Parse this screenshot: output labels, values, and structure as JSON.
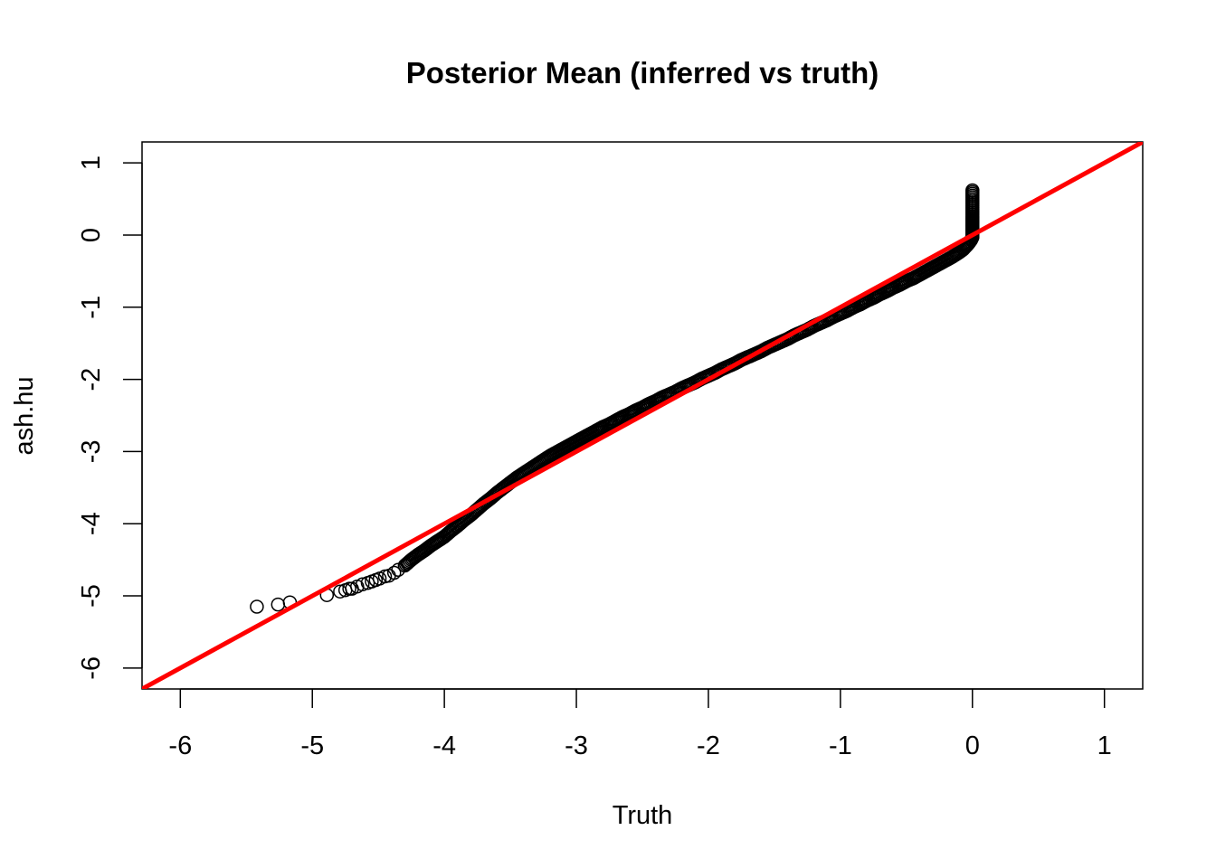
{
  "chart_data": {
    "type": "scatter",
    "title": "Posterior Mean (inferred vs truth)",
    "xlabel": "Truth",
    "ylabel": "ash.hu",
    "xlim": [
      -6.29,
      1.29
    ],
    "ylim": [
      -6.29,
      1.29
    ],
    "x_ticks": [
      -6,
      -5,
      -4,
      -3,
      -2,
      -1,
      0,
      1
    ],
    "x_tick_labels": [
      "-6",
      "-5",
      "-4",
      "-3",
      "-2",
      "-1",
      "0",
      "1"
    ],
    "y_ticks": [
      -6,
      -5,
      -4,
      -3,
      -2,
      -1,
      0,
      1
    ],
    "y_tick_labels": [
      "-6",
      "-5",
      "-4",
      "-3",
      "-2",
      "-1",
      "0",
      "1"
    ],
    "grid": false,
    "legend": "none",
    "point_style": "open-circle",
    "point_color": "#000000",
    "reference_line": {
      "type": "abline",
      "intercept": 0,
      "slope": 1,
      "color": "#ff0000"
    },
    "series": [
      {
        "points": [
          {
            "x": -5.42,
            "y": -5.15
          },
          {
            "x": -5.26,
            "y": -5.12
          },
          {
            "x": -5.17,
            "y": -5.09
          },
          {
            "x": -4.89,
            "y": -4.99
          },
          {
            "x": -4.79,
            "y": -4.94
          },
          {
            "x": -4.75,
            "y": -4.92
          },
          {
            "x": -4.72,
            "y": -4.9
          },
          {
            "x": -4.7,
            "y": -4.9
          },
          {
            "x": -4.66,
            "y": -4.87
          },
          {
            "x": -4.62,
            "y": -4.84
          },
          {
            "x": -4.58,
            "y": -4.82
          },
          {
            "x": -4.55,
            "y": -4.8
          },
          {
            "x": -4.52,
            "y": -4.78
          },
          {
            "x": -4.49,
            "y": -4.76
          },
          {
            "x": -4.45,
            "y": -4.73
          },
          {
            "x": -4.42,
            "y": -4.72
          },
          {
            "x": -4.38,
            "y": -4.68
          },
          {
            "x": -4.35,
            "y": -4.64
          },
          {
            "x": -4.3,
            "y": -4.58
          },
          {
            "x": -4.25,
            "y": -4.5
          },
          {
            "x": -4.2,
            "y": -4.43
          },
          {
            "x": -4.15,
            "y": -4.37
          },
          {
            "x": -4.1,
            "y": -4.3
          },
          {
            "x": -4.05,
            "y": -4.24
          },
          {
            "x": -4.0,
            "y": -4.18
          },
          {
            "x": -3.95,
            "y": -4.1
          },
          {
            "x": -3.9,
            "y": -4.03
          },
          {
            "x": -3.85,
            "y": -3.95
          },
          {
            "x": -3.8,
            "y": -3.88
          },
          {
            "x": -3.75,
            "y": -3.8
          },
          {
            "x": -3.7,
            "y": -3.72
          },
          {
            "x": -3.65,
            "y": -3.65
          },
          {
            "x": -3.6,
            "y": -3.57
          },
          {
            "x": -3.55,
            "y": -3.5
          },
          {
            "x": -3.5,
            "y": -3.43
          },
          {
            "x": -3.45,
            "y": -3.36
          },
          {
            "x": -3.4,
            "y": -3.3
          },
          {
            "x": -3.35,
            "y": -3.24
          },
          {
            "x": -3.3,
            "y": -3.18
          },
          {
            "x": -3.25,
            "y": -3.12
          },
          {
            "x": -3.2,
            "y": -3.06
          },
          {
            "x": -3.15,
            "y": -3.01
          },
          {
            "x": -3.1,
            "y": -2.96
          },
          {
            "x": -3.05,
            "y": -2.91
          },
          {
            "x": -3.0,
            "y": -2.86
          },
          {
            "x": -2.95,
            "y": -2.81
          },
          {
            "x": -2.9,
            "y": -2.76
          },
          {
            "x": -2.85,
            "y": -2.71
          },
          {
            "x": -2.8,
            "y": -2.66
          },
          {
            "x": -2.75,
            "y": -2.62
          },
          {
            "x": -2.7,
            "y": -2.57
          },
          {
            "x": -2.65,
            "y": -2.52
          },
          {
            "x": -2.6,
            "y": -2.48
          },
          {
            "x": -2.55,
            "y": -2.43
          },
          {
            "x": -2.5,
            "y": -2.39
          },
          {
            "x": -2.45,
            "y": -2.34
          },
          {
            "x": -2.4,
            "y": -2.3
          },
          {
            "x": -2.35,
            "y": -2.25
          },
          {
            "x": -2.3,
            "y": -2.21
          },
          {
            "x": -2.25,
            "y": -2.17
          },
          {
            "x": -2.2,
            "y": -2.12
          },
          {
            "x": -2.15,
            "y": -2.08
          },
          {
            "x": -2.1,
            "y": -2.04
          },
          {
            "x": -2.05,
            "y": -1.99
          },
          {
            "x": -2.0,
            "y": -1.95
          },
          {
            "x": -1.95,
            "y": -1.91
          },
          {
            "x": -1.9,
            "y": -1.86
          },
          {
            "x": -1.85,
            "y": -1.82
          },
          {
            "x": -1.8,
            "y": -1.78
          },
          {
            "x": -1.75,
            "y": -1.73
          },
          {
            "x": -1.7,
            "y": -1.69
          },
          {
            "x": -1.65,
            "y": -1.65
          },
          {
            "x": -1.6,
            "y": -1.61
          },
          {
            "x": -1.55,
            "y": -1.56
          },
          {
            "x": -1.5,
            "y": -1.52
          },
          {
            "x": -1.45,
            "y": -1.48
          },
          {
            "x": -1.4,
            "y": -1.44
          },
          {
            "x": -1.35,
            "y": -1.39
          },
          {
            "x": -1.3,
            "y": -1.35
          },
          {
            "x": -1.25,
            "y": -1.31
          },
          {
            "x": -1.2,
            "y": -1.26
          },
          {
            "x": -1.15,
            "y": -1.22
          },
          {
            "x": -1.1,
            "y": -1.18
          },
          {
            "x": -1.05,
            "y": -1.13
          },
          {
            "x": -1.0,
            "y": -1.09
          },
          {
            "x": -0.95,
            "y": -1.05
          },
          {
            "x": -0.9,
            "y": -1.0
          },
          {
            "x": -0.85,
            "y": -0.96
          },
          {
            "x": -0.8,
            "y": -0.91
          },
          {
            "x": -0.75,
            "y": -0.87
          },
          {
            "x": -0.7,
            "y": -0.82
          },
          {
            "x": -0.65,
            "y": -0.78
          },
          {
            "x": -0.6,
            "y": -0.73
          },
          {
            "x": -0.55,
            "y": -0.69
          },
          {
            "x": -0.5,
            "y": -0.64
          },
          {
            "x": -0.45,
            "y": -0.6
          },
          {
            "x": -0.4,
            "y": -0.55
          },
          {
            "x": -0.35,
            "y": -0.5
          },
          {
            "x": -0.3,
            "y": -0.45
          },
          {
            "x": -0.25,
            "y": -0.4
          },
          {
            "x": -0.2,
            "y": -0.35
          },
          {
            "x": -0.15,
            "y": -0.3
          },
          {
            "x": -0.1,
            "y": -0.24
          },
          {
            "x": -0.07,
            "y": -0.2
          },
          {
            "x": -0.05,
            "y": -0.16
          },
          {
            "x": -0.03,
            "y": -0.12
          },
          {
            "x": -0.01,
            "y": -0.07
          },
          {
            "x": 0.0,
            "y": -0.03
          },
          {
            "x": 0.0,
            "y": 0.0
          },
          {
            "x": 0.0,
            "y": 0.03
          },
          {
            "x": 0.0,
            "y": 0.06
          },
          {
            "x": 0.0,
            "y": 0.09
          },
          {
            "x": 0.0,
            "y": 0.12
          },
          {
            "x": 0.0,
            "y": 0.15
          },
          {
            "x": 0.0,
            "y": 0.18
          },
          {
            "x": 0.0,
            "y": 0.21
          },
          {
            "x": 0.0,
            "y": 0.24
          },
          {
            "x": 0.0,
            "y": 0.26
          },
          {
            "x": 0.0,
            "y": 0.62
          }
        ]
      }
    ]
  }
}
